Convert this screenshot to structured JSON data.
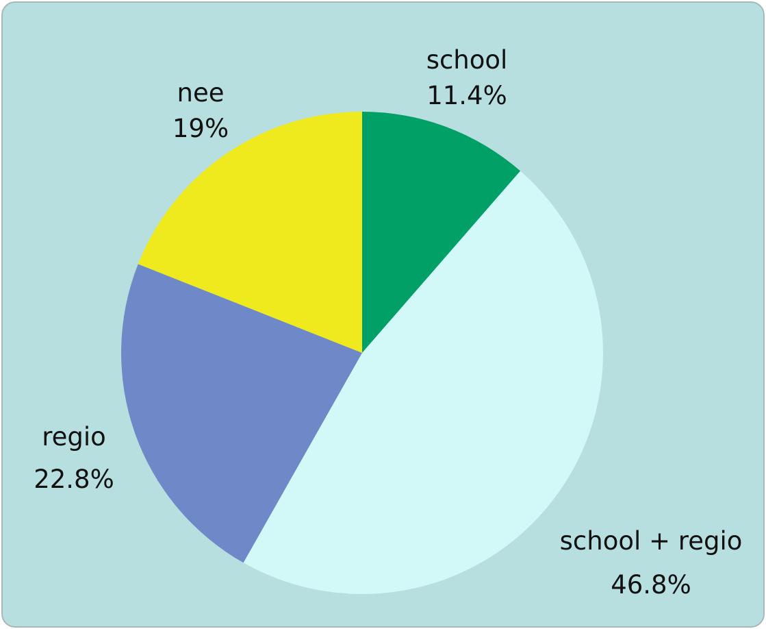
{
  "chart_data": {
    "type": "pie",
    "title": "",
    "slices": [
      {
        "label": "school",
        "value": 11.4,
        "display": "11.4%",
        "color": "#00a067"
      },
      {
        "label": "school + regio",
        "value": 46.8,
        "display": "46.8%",
        "color": "#d2f8f8"
      },
      {
        "label": "regio",
        "value": 22.8,
        "display": "22.8%",
        "color": "#6f88c8"
      },
      {
        "label": "nee",
        "value": 19,
        "display": "19%",
        "color": "#eeea1e"
      }
    ],
    "start_angle": "12 o'clock",
    "direction": "clockwise",
    "legend": "none"
  },
  "colors": {
    "panel_background": "#b8dfdf",
    "panel_border": "#a8b8b8"
  }
}
